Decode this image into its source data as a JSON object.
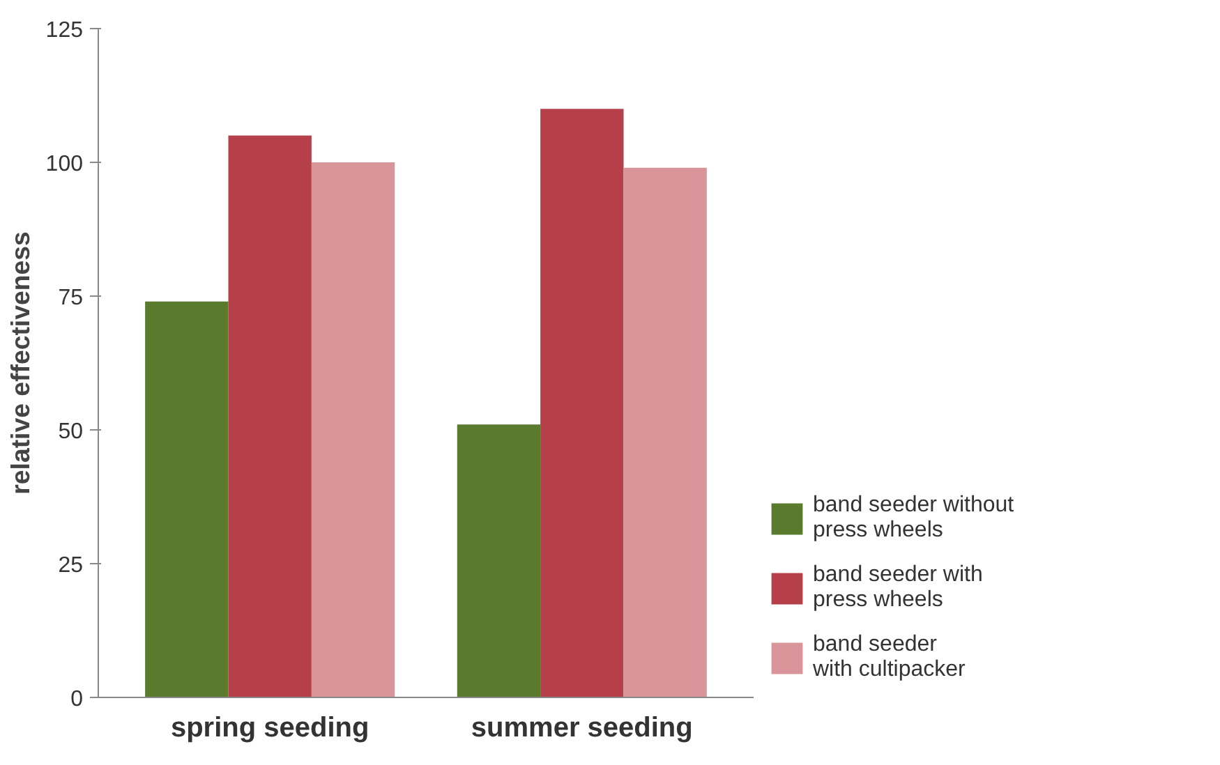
{
  "chart_data": {
    "type": "bar",
    "ylabel": "relative effectiveness",
    "categories": [
      "spring seeding",
      "summer seeding"
    ],
    "series": [
      {
        "name": "band seeder without\npress wheels",
        "color": "#5a7a2e",
        "values": [
          74,
          51
        ]
      },
      {
        "name": "band seeder with\npress wheels",
        "color": "#b5404a",
        "values": [
          105,
          110
        ]
      },
      {
        "name": "band seeder\nwith cultipacker",
        "color": "#d9959a",
        "values": [
          100,
          99
        ]
      }
    ],
    "ylim": [
      0,
      125
    ],
    "yticks": [
      0,
      25,
      50,
      75,
      100,
      125
    ],
    "grid": false,
    "legend": "right"
  }
}
